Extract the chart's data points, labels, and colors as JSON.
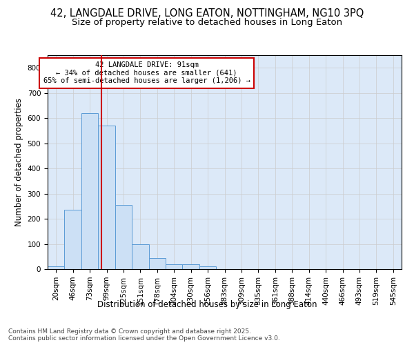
{
  "title_line1": "42, LANGDALE DRIVE, LONG EATON, NOTTINGHAM, NG10 3PQ",
  "title_line2": "Size of property relative to detached houses in Long Eaton",
  "xlabel": "Distribution of detached houses by size in Long Eaton",
  "ylabel": "Number of detached properties",
  "bar_labels": [
    "20sqm",
    "46sqm",
    "73sqm",
    "99sqm",
    "125sqm",
    "151sqm",
    "178sqm",
    "204sqm",
    "230sqm",
    "256sqm",
    "283sqm",
    "309sqm",
    "335sqm",
    "361sqm",
    "388sqm",
    "414sqm",
    "440sqm",
    "466sqm",
    "493sqm",
    "519sqm",
    "545sqm"
  ],
  "bar_values": [
    10,
    235,
    620,
    570,
    255,
    100,
    45,
    20,
    20,
    10,
    0,
    0,
    0,
    0,
    0,
    0,
    0,
    0,
    0,
    0,
    0
  ],
  "bar_color": "#cce0f5",
  "bar_edge_color": "#5b9bd5",
  "grid_color": "#cccccc",
  "bg_color": "#dce9f8",
  "vline_color": "#cc0000",
  "annotation_text": "42 LANGDALE DRIVE: 91sqm\n← 34% of detached houses are smaller (641)\n65% of semi-detached houses are larger (1,206) →",
  "annotation_box_color": "#cc0000",
  "ylim": [
    0,
    850
  ],
  "yticks": [
    0,
    100,
    200,
    300,
    400,
    500,
    600,
    700,
    800
  ],
  "footnote": "Contains HM Land Registry data © Crown copyright and database right 2025.\nContains public sector information licensed under the Open Government Licence v3.0.",
  "title_fontsize": 10.5,
  "subtitle_fontsize": 9.5,
  "axis_label_fontsize": 8.5,
  "tick_fontsize": 7.5,
  "annot_fontsize": 7.5,
  "footnote_fontsize": 6.5
}
